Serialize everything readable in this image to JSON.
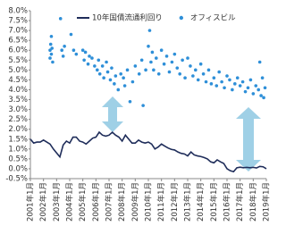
{
  "chart_data": {
    "type": "combo",
    "ylim": [
      -0.5,
      8
    ],
    "yticks": [
      {
        "value": -0.5,
        "label": "-0.5%"
      },
      {
        "value": 0,
        "label": "0.0%"
      },
      {
        "value": 0.5,
        "label": "0.5%"
      },
      {
        "value": 1,
        "label": "1.0%"
      },
      {
        "value": 1.5,
        "label": "1.5%"
      },
      {
        "value": 2,
        "label": "2.0%"
      },
      {
        "value": 2.5,
        "label": "2.5%"
      },
      {
        "value": 3,
        "label": "3.0%"
      },
      {
        "value": 3.5,
        "label": "3.5%"
      },
      {
        "value": 4,
        "label": "4.0%"
      },
      {
        "value": 4.5,
        "label": "4.5%"
      },
      {
        "value": 5,
        "label": "5.0%"
      },
      {
        "value": 5.5,
        "label": "5.5%"
      },
      {
        "value": 6,
        "label": "6.0%"
      },
      {
        "value": 6.5,
        "label": "6.5%"
      },
      {
        "value": 7,
        "label": "7.0%"
      },
      {
        "value": 7.5,
        "label": "7.5%"
      },
      {
        "value": 8,
        "label": "8.0%"
      }
    ],
    "xlim": [
      2001,
      2019
    ],
    "xticks": [
      {
        "value": 2001,
        "label": "2001年1月"
      },
      {
        "value": 2002,
        "label": "2002年1月"
      },
      {
        "value": 2003,
        "label": "2003年1月"
      },
      {
        "value": 2004,
        "label": "2004年1月"
      },
      {
        "value": 2005,
        "label": "2005年1月"
      },
      {
        "value": 2006,
        "label": "2006年1月"
      },
      {
        "value": 2007,
        "label": "2007年1月"
      },
      {
        "value": 2008,
        "label": "2008年1月"
      },
      {
        "value": 2009,
        "label": "2009年1月"
      },
      {
        "value": 2010,
        "label": "2010年1月"
      },
      {
        "value": 2011,
        "label": "2011年1月"
      },
      {
        "value": 2012,
        "label": "2012年1月"
      },
      {
        "value": 2013,
        "label": "2013年1月"
      },
      {
        "value": 2014,
        "label": "2014年1月"
      },
      {
        "value": 2015,
        "label": "2015年1月"
      },
      {
        "value": 2016,
        "label": "2016年1月"
      },
      {
        "value": 2017,
        "label": "2017年1月"
      },
      {
        "value": 2018,
        "label": "2018年1月"
      },
      {
        "value": 2019,
        "label": "2019年1月"
      }
    ],
    "grid": false,
    "legend": "top",
    "series": [
      {
        "name": "10年国債流通利回り",
        "type": "line",
        "color": "#1f2d5a",
        "x": [
          2001,
          2001.25,
          2001.5,
          2001.75,
          2002,
          2002.25,
          2002.5,
          2002.75,
          2003,
          2003.25,
          2003.5,
          2003.75,
          2004,
          2004.25,
          2004.5,
          2004.75,
          2005,
          2005.25,
          2005.5,
          2005.75,
          2006,
          2006.25,
          2006.5,
          2006.75,
          2007,
          2007.25,
          2007.5,
          2007.75,
          2008,
          2008.25,
          2008.5,
          2008.75,
          2009,
          2009.25,
          2009.5,
          2009.75,
          2010,
          2010.25,
          2010.5,
          2010.75,
          2011,
          2011.25,
          2011.5,
          2011.75,
          2012,
          2012.25,
          2012.5,
          2012.75,
          2013,
          2013.25,
          2013.5,
          2013.75,
          2014,
          2014.25,
          2014.5,
          2014.75,
          2015,
          2015.25,
          2015.5,
          2015.75,
          2016,
          2016.25,
          2016.5,
          2016.75,
          2017,
          2017.25,
          2017.5,
          2017.75,
          2018,
          2018.25,
          2018.5,
          2018.75,
          2019
        ],
        "values": [
          1.5,
          1.3,
          1.35,
          1.35,
          1.45,
          1.35,
          1.25,
          1.0,
          0.8,
          0.6,
          1.2,
          1.4,
          1.3,
          1.6,
          1.6,
          1.4,
          1.35,
          1.25,
          1.4,
          1.55,
          1.6,
          1.85,
          1.7,
          1.65,
          1.7,
          1.85,
          1.7,
          1.6,
          1.4,
          1.7,
          1.5,
          1.3,
          1.3,
          1.45,
          1.35,
          1.3,
          1.35,
          1.25,
          1.0,
          1.1,
          1.25,
          1.15,
          1.05,
          0.98,
          0.95,
          0.85,
          0.78,
          0.75,
          0.65,
          0.85,
          0.7,
          0.65,
          0.62,
          0.57,
          0.5,
          0.35,
          0.3,
          0.45,
          0.35,
          0.27,
          0.0,
          -0.1,
          -0.15,
          0.05,
          0.08,
          0.05,
          0.07,
          0.05,
          0.07,
          0.04,
          0.12,
          0.1,
          0.0
        ]
      },
      {
        "name": "オフィスビル",
        "type": "scatter",
        "color": "#2e8fd8",
        "x": [
          2002.5,
          2002.5,
          2002.55,
          2002.6,
          2002.6,
          2002.65,
          2002.7,
          2003.3,
          2003.4,
          2003.5,
          2003.6,
          2004.1,
          2004.3,
          2004.5,
          2005.0,
          2005.1,
          2005.2,
          2005.4,
          2005.5,
          2005.7,
          2005.9,
          2006.1,
          2006.2,
          2006.3,
          2006.5,
          2006.6,
          2006.8,
          2006.9,
          2007.1,
          2007.2,
          2007.4,
          2007.5,
          2007.7,
          2007.9,
          2008.1,
          2008.2,
          2008.4,
          2008.6,
          2008.8,
          2009.0,
          2009.3,
          2009.5,
          2009.6,
          2009.8,
          2010.0,
          2010.1,
          2010.2,
          2010.3,
          2010.4,
          2010.6,
          2010.8,
          2011.0,
          2011.2,
          2011.4,
          2011.6,
          2011.8,
          2012.0,
          2012.2,
          2012.4,
          2012.6,
          2012.8,
          2013.0,
          2013.2,
          2013.4,
          2013.6,
          2013.8,
          2014.0,
          2014.2,
          2014.4,
          2014.6,
          2014.8,
          2015.0,
          2015.2,
          2015.4,
          2015.6,
          2015.8,
          2016.0,
          2016.2,
          2016.4,
          2016.6,
          2016.8,
          2017.0,
          2017.2,
          2017.4,
          2017.6,
          2017.8,
          2018.0,
          2018.2,
          2018.4,
          2018.5,
          2018.6,
          2018.7,
          2018.8,
          2018.9
        ],
        "values": [
          6.0,
          5.6,
          6.3,
          6.7,
          5.8,
          6.1,
          5.4,
          7.6,
          6.0,
          5.7,
          6.2,
          6.8,
          6.0,
          5.8,
          6.0,
          5.5,
          5.9,
          5.3,
          5.7,
          5.6,
          5.2,
          5.0,
          5.5,
          4.8,
          5.2,
          4.6,
          5.4,
          4.9,
          4.5,
          5.1,
          4.3,
          4.7,
          4.0,
          4.8,
          4.6,
          4.2,
          5.0,
          3.4,
          4.4,
          5.2,
          4.8,
          5.5,
          3.2,
          5.0,
          6.2,
          7.0,
          5.4,
          5.9,
          5.0,
          5.6,
          4.8,
          6.0,
          5.3,
          5.7,
          4.9,
          5.4,
          5.8,
          5.1,
          4.8,
          5.5,
          4.6,
          5.6,
          5.2,
          4.7,
          5.0,
          4.5,
          5.3,
          4.8,
          4.4,
          5.0,
          4.3,
          4.6,
          4.2,
          4.9,
          4.4,
          4.1,
          4.7,
          4.5,
          4.0,
          4.3,
          4.6,
          4.2,
          4.4,
          3.9,
          4.1,
          4.5,
          3.8,
          4.2,
          4.0,
          5.4,
          3.7,
          4.6,
          3.6,
          4.1
        ]
      }
    ]
  }
}
